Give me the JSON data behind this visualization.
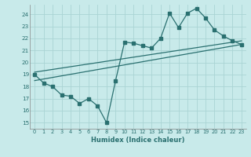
{
  "xlabel": "Humidex (Indice chaleur)",
  "bg_color": "#c8eaea",
  "grid_color": "#aad4d4",
  "line_color": "#2a7070",
  "xlim": [
    -0.5,
    23.5
  ],
  "ylim": [
    14.5,
    24.8
  ],
  "xticks": [
    0,
    1,
    2,
    3,
    4,
    5,
    6,
    7,
    8,
    9,
    10,
    11,
    12,
    13,
    14,
    15,
    16,
    17,
    18,
    19,
    20,
    21,
    22,
    23
  ],
  "yticks": [
    15,
    16,
    17,
    18,
    19,
    20,
    21,
    22,
    23,
    24
  ],
  "series1_x": [
    0,
    1,
    2,
    3,
    4,
    5,
    6,
    7,
    8,
    9,
    10,
    11,
    12,
    13,
    14,
    15,
    16,
    17,
    18,
    19,
    20,
    21,
    22,
    23
  ],
  "series1_y": [
    19.0,
    18.3,
    18.0,
    17.3,
    17.2,
    16.6,
    17.0,
    16.4,
    15.0,
    18.5,
    21.7,
    21.6,
    21.4,
    21.2,
    22.0,
    24.1,
    22.9,
    24.1,
    24.5,
    23.7,
    22.7,
    22.2,
    21.8,
    21.5
  ],
  "trend1_x": [
    0,
    23
  ],
  "trend1_y": [
    18.5,
    21.5
  ],
  "trend2_x": [
    0,
    23
  ],
  "trend2_y": [
    19.2,
    21.8
  ]
}
